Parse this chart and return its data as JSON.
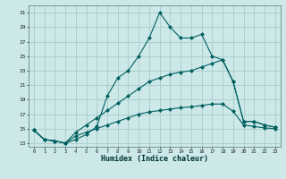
{
  "xlabel": "Humidex (Indice chaleur)",
  "bg_color": "#cce8e8",
  "grid_color": "#aacccc",
  "line_color": "#006060",
  "xlim": [
    -0.5,
    23.5
  ],
  "ylim": [
    12.5,
    32.0
  ],
  "xticks": [
    0,
    1,
    2,
    3,
    4,
    5,
    6,
    7,
    8,
    9,
    10,
    11,
    12,
    13,
    14,
    15,
    16,
    17,
    18,
    19,
    20,
    21,
    22,
    23
  ],
  "yticks": [
    13,
    15,
    17,
    19,
    21,
    23,
    25,
    27,
    29,
    31
  ],
  "line1_x": [
    0,
    1,
    2,
    3,
    4,
    5,
    6,
    7,
    8,
    9,
    10,
    11,
    12,
    13,
    14,
    15,
    16,
    17,
    18,
    19,
    20,
    21,
    22,
    23
  ],
  "line1_y": [
    14.8,
    13.5,
    13.3,
    13.0,
    13.5,
    14.2,
    15.3,
    19.5,
    22.0,
    23.0,
    25.0,
    27.5,
    31.0,
    29.0,
    27.5,
    27.5,
    28.0,
    25.0,
    24.5,
    21.5,
    16.0,
    16.0,
    15.5,
    15.2
  ],
  "line2_x": [
    0,
    1,
    2,
    3,
    4,
    5,
    6,
    7,
    8,
    9,
    10,
    11,
    12,
    13,
    14,
    15,
    16,
    17,
    18,
    19,
    20,
    21,
    22,
    23
  ],
  "line2_y": [
    14.8,
    13.5,
    13.3,
    13.0,
    14.5,
    15.5,
    16.5,
    17.5,
    18.5,
    19.5,
    20.5,
    21.5,
    22.0,
    22.5,
    22.8,
    23.0,
    23.5,
    24.0,
    24.5,
    21.5,
    16.0,
    16.0,
    15.5,
    15.2
  ],
  "line3_x": [
    0,
    1,
    2,
    3,
    4,
    5,
    6,
    7,
    8,
    9,
    10,
    11,
    12,
    13,
    14,
    15,
    16,
    17,
    18,
    19,
    20,
    21,
    22,
    23
  ],
  "line3_y": [
    14.8,
    13.5,
    13.3,
    13.0,
    14.0,
    14.5,
    15.0,
    15.5,
    16.0,
    16.5,
    17.0,
    17.3,
    17.5,
    17.7,
    17.9,
    18.0,
    18.2,
    18.4,
    18.4,
    17.4,
    15.5,
    15.3,
    15.1,
    15.0
  ]
}
